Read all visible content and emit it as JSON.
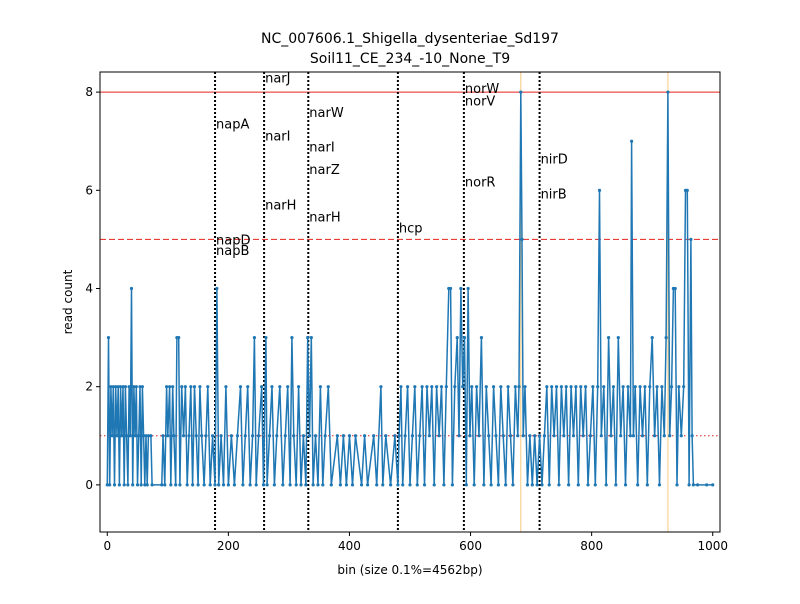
{
  "chart_data": {
    "type": "line",
    "title": "NC_007606.1_Shigella_dysenteriae_Sd197",
    "subtitle": "Soil11_CE_234_-10_None_T9",
    "x_label": "bin (size 0.1%=4562bp)",
    "y_label": "read count",
    "xlim": [
      -12,
      1012
    ],
    "ylim": [
      -0.96,
      8.41
    ],
    "xticks": [
      0,
      200,
      400,
      600,
      800,
      1000
    ],
    "yticks": [
      0,
      2,
      4,
      6,
      8
    ],
    "hlines": [
      {
        "value": 8,
        "color": "#e8231c",
        "style": "solid"
      },
      {
        "value": 5,
        "color": "#e8231c",
        "style": "dashed"
      },
      {
        "value": 1,
        "color": "#e8231c",
        "style": "dotted"
      }
    ],
    "vlines": [
      {
        "value": 683,
        "color": "#f5c97a"
      },
      {
        "value": 926,
        "color": "#f5c97a"
      }
    ],
    "gene_lines": [
      178,
      259,
      332,
      480,
      589,
      714
    ],
    "annotations": [
      {
        "text": "napA",
        "x": 178,
        "y": 7.35
      },
      {
        "text": "napD",
        "x": 178,
        "y": 4.99
      },
      {
        "text": "napB",
        "x": 178,
        "y": 4.77
      },
      {
        "text": "narJ",
        "x": 259,
        "y": 8.29
      },
      {
        "text": "narI",
        "x": 259,
        "y": 7.11
      },
      {
        "text": "narH",
        "x": 259,
        "y": 5.7
      },
      {
        "text": "narW",
        "x": 332,
        "y": 7.58
      },
      {
        "text": "narI",
        "x": 332,
        "y": 6.88
      },
      {
        "text": "narZ",
        "x": 332,
        "y": 6.42
      },
      {
        "text": "narH",
        "x": 332,
        "y": 5.46
      },
      {
        "text": "hcp",
        "x": 480,
        "y": 5.23
      },
      {
        "text": "norW",
        "x": 589,
        "y": 8.07
      },
      {
        "text": "norV",
        "x": 589,
        "y": 7.82
      },
      {
        "text": "norR",
        "x": 589,
        "y": 6.17
      },
      {
        "text": "nirD",
        "x": 714,
        "y": 6.64
      },
      {
        "text": "nirB",
        "x": 714,
        "y": 5.93
      }
    ],
    "series": [
      {
        "color": "#1f77b4",
        "x": [
          0,
          2,
          4,
          6,
          8,
          10,
          12,
          14,
          16,
          18,
          20,
          22,
          24,
          26,
          28,
          30,
          32,
          34,
          36,
          38,
          40,
          42,
          44,
          46,
          48,
          50,
          52,
          54,
          56,
          58,
          60,
          62,
          64,
          66,
          68,
          72,
          74,
          90,
          92,
          95,
          98,
          100,
          103,
          105,
          108,
          110,
          113,
          115,
          118,
          120,
          123,
          126,
          129,
          132,
          135,
          138,
          141,
          144,
          147,
          150,
          153,
          156,
          160,
          163,
          166,
          170,
          174,
          178,
          181,
          184,
          188,
          192,
          196,
          200,
          205,
          210,
          215,
          220,
          224,
          228,
          232,
          236,
          240,
          243,
          246,
          250,
          255,
          258,
          262,
          264,
          268,
          272,
          276,
          280,
          285,
          290,
          294,
          298,
          302,
          305,
          308,
          312,
          316,
          320,
          324,
          328,
          331,
          334,
          337,
          340,
          344,
          348,
          352,
          356,
          360,
          365,
          370,
          380,
          385,
          390,
          395,
          400,
          405,
          410,
          420,
          425,
          430,
          440,
          445,
          452,
          455,
          460,
          468,
          475,
          480,
          482,
          485,
          488,
          492,
          496,
          500,
          504,
          508,
          512,
          516,
          520,
          524,
          528,
          532,
          536,
          540,
          544,
          548,
          552,
          556,
          560,
          564,
          567,
          570,
          574,
          578,
          581,
          584,
          587,
          590,
          593,
          596,
          599,
          602,
          606,
          610,
          614,
          618,
          622,
          626,
          630,
          634,
          638,
          642,
          646,
          650,
          654,
          658,
          662,
          666,
          670,
          674,
          678,
          680,
          683,
          685,
          687,
          690,
          694,
          698,
          702,
          706,
          710,
          714,
          718,
          722,
          726,
          730,
          734,
          738,
          742,
          746,
          750,
          754,
          758,
          762,
          766,
          770,
          774,
          778,
          782,
          786,
          790,
          794,
          798,
          802,
          806,
          810,
          813,
          816,
          820,
          824,
          828,
          832,
          836,
          840,
          844,
          848,
          852,
          856,
          860,
          864,
          866,
          869,
          872,
          876,
          880,
          884,
          888,
          892,
          896,
          900,
          904,
          908,
          912,
          916,
          920,
          923,
          926,
          929,
          932,
          935,
          938,
          941,
          944,
          948,
          952,
          955,
          958,
          961,
          964,
          966,
          968,
          975,
          990,
          1000
        ],
        "values": [
          0,
          3,
          0,
          2,
          1,
          2,
          0,
          2,
          1,
          2,
          0,
          2,
          1,
          2,
          0,
          2,
          1,
          0,
          2,
          1,
          4,
          0,
          2,
          1,
          2,
          0,
          1,
          2,
          0,
          2,
          1,
          0,
          1,
          0,
          1,
          1,
          0,
          0,
          1,
          0,
          2,
          1,
          2,
          0,
          2,
          1,
          0,
          3,
          3,
          0,
          2,
          1,
          2,
          0,
          1,
          2,
          0,
          2,
          1,
          0,
          2,
          1,
          0,
          1,
          2,
          0,
          1,
          0,
          4,
          0,
          1,
          0,
          2,
          0,
          1,
          0,
          1,
          2,
          0,
          1,
          2,
          0,
          1,
          3,
          0,
          1,
          2,
          0,
          3,
          0,
          1,
          2,
          0,
          1,
          2,
          0,
          1,
          2,
          0,
          3,
          1,
          0,
          2,
          0,
          1,
          0,
          3,
          1,
          3,
          0,
          1,
          0,
          2,
          0,
          1,
          2,
          0,
          1,
          0,
          1,
          0,
          1,
          0,
          1,
          0,
          1,
          0,
          1,
          0,
          2,
          0,
          1,
          0,
          1,
          0,
          1,
          2,
          0,
          1,
          2,
          0,
          1,
          2,
          0,
          1,
          2,
          0,
          2,
          1,
          2,
          0,
          2,
          1,
          2,
          0,
          2,
          4,
          4,
          0,
          2,
          3,
          1,
          4,
          2,
          3,
          0,
          4,
          1,
          2,
          0,
          2,
          1,
          3,
          0,
          2,
          1,
          0,
          2,
          1,
          0,
          2,
          1,
          0,
          2,
          1,
          0,
          2,
          1,
          2,
          8,
          5,
          1,
          2,
          0,
          1,
          0,
          1,
          0,
          1,
          0,
          1,
          2,
          0,
          2,
          1,
          2,
          0,
          2,
          1,
          2,
          0,
          2,
          1,
          2,
          0,
          2,
          1,
          2,
          0,
          1,
          2,
          0,
          2,
          6,
          1,
          2,
          0,
          3,
          1,
          2,
          0,
          3,
          1,
          2,
          0,
          2,
          1,
          7,
          1,
          2,
          0,
          2,
          1,
          2,
          0,
          2,
          3,
          1,
          2,
          0,
          2,
          1,
          3,
          8,
          1,
          2,
          4,
          4,
          0,
          2,
          1,
          2,
          6,
          6,
          0,
          5,
          1,
          0,
          0,
          0,
          0
        ]
      }
    ]
  }
}
